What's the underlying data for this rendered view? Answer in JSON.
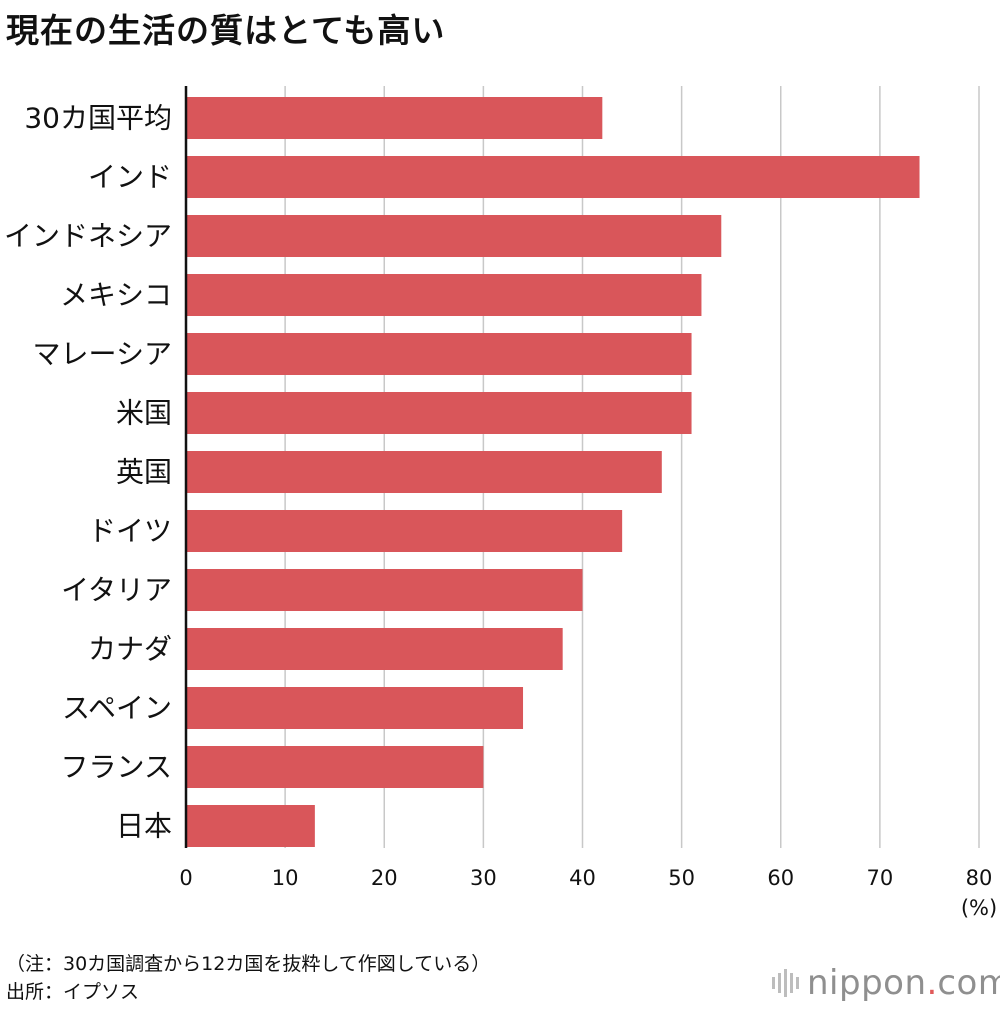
{
  "title": "現在の生活の質はとても高い",
  "chart_data": {
    "type": "bar",
    "orientation": "horizontal",
    "title": "現在の生活の質はとても高い",
    "categories": [
      "30カ国平均",
      "インド",
      "インドネシア",
      "メキシコ",
      "マレーシア",
      "米国",
      "英国",
      "ドイツ",
      "イタリア",
      "カナダ",
      "スペイン",
      "フランス",
      "日本"
    ],
    "values": [
      42,
      74,
      54,
      52,
      51,
      51,
      48,
      44,
      40,
      38,
      34,
      30,
      13
    ],
    "xlim": [
      0,
      80
    ],
    "x_ticks": [
      "0",
      "10",
      "20",
      "30",
      "40",
      "50",
      "60",
      "70",
      "80"
    ],
    "xlabel": "(%)",
    "ylabel": "",
    "grid": "vertical",
    "bar_color": "#d9565a",
    "grid_color": "#c8c8c8"
  },
  "footer": {
    "note": "（注：30カ国調査から12カ国を抜粋して作図している）",
    "source": "出所：イプソス"
  },
  "logo": {
    "name": "nippon",
    "dot": ".",
    "suffix": "com",
    "text_color": "#8f8f8f",
    "dot_color": "#e05a5a"
  }
}
